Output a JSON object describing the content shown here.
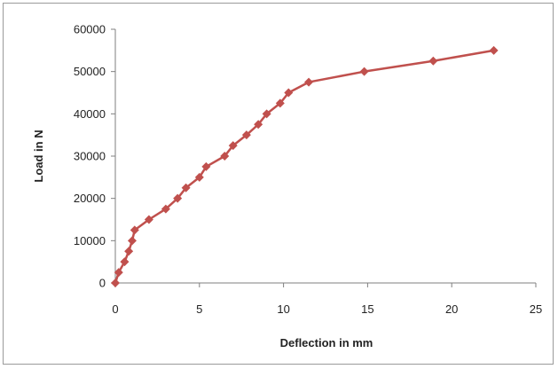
{
  "chart_data": {
    "type": "line",
    "title": "",
    "xlabel": "Deflection in mm",
    "ylabel": "Load in N",
    "xlim": [
      0,
      25
    ],
    "ylim": [
      0,
      60000
    ],
    "xticks": [
      "0",
      "5",
      "10",
      "15",
      "20",
      "25"
    ],
    "yticks": [
      "0",
      "10000",
      "20000",
      "30000",
      "40000",
      "50000",
      "60000"
    ],
    "grid": false,
    "legend": "none",
    "series": [
      {
        "color": "#c0504d",
        "marker": "diamond",
        "points": [
          {
            "x": 0,
            "y": 0
          },
          {
            "x": 0.2,
            "y": 2500
          },
          {
            "x": 0.55,
            "y": 5000
          },
          {
            "x": 0.8,
            "y": 7500
          },
          {
            "x": 1.0,
            "y": 10000
          },
          {
            "x": 1.15,
            "y": 12500
          },
          {
            "x": 2.0,
            "y": 15000
          },
          {
            "x": 3.0,
            "y": 17500
          },
          {
            "x": 3.7,
            "y": 20000
          },
          {
            "x": 4.2,
            "y": 22500
          },
          {
            "x": 5.0,
            "y": 25000
          },
          {
            "x": 5.4,
            "y": 27500
          },
          {
            "x": 6.5,
            "y": 30000
          },
          {
            "x": 7.0,
            "y": 32500
          },
          {
            "x": 7.8,
            "y": 35000
          },
          {
            "x": 8.5,
            "y": 37500
          },
          {
            "x": 9.0,
            "y": 40000
          },
          {
            "x": 9.8,
            "y": 42500
          },
          {
            "x": 10.3,
            "y": 45000
          },
          {
            "x": 11.5,
            "y": 47500
          },
          {
            "x": 14.8,
            "y": 50000
          },
          {
            "x": 18.9,
            "y": 52500
          },
          {
            "x": 22.5,
            "y": 55000
          }
        ]
      }
    ]
  }
}
